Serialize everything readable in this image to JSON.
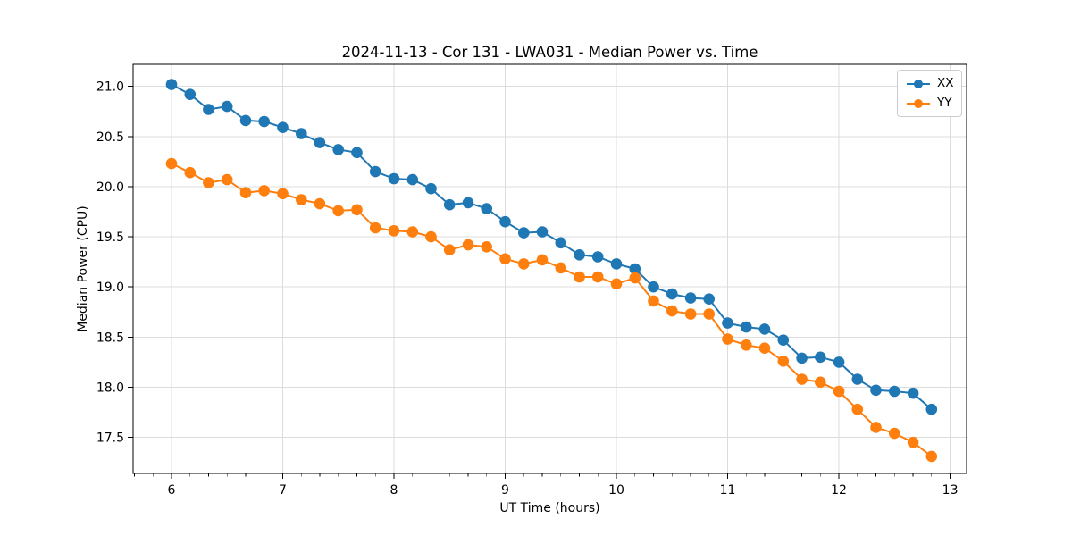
{
  "page": {
    "background": "#ffffff"
  },
  "chart_data": {
    "type": "line",
    "title": "2024-11-13 - Cor 131 - LWA031 - Median Power vs. Time",
    "xlabel": "UT Time (hours)",
    "ylabel": "Median Power (CPU)",
    "x": [
      6.0,
      6.167,
      6.333,
      6.5,
      6.667,
      6.833,
      7.0,
      7.167,
      7.333,
      7.5,
      7.667,
      7.833,
      8.0,
      8.167,
      8.333,
      8.5,
      8.667,
      8.833,
      9.0,
      9.167,
      9.333,
      9.5,
      9.667,
      9.833,
      10.0,
      10.167,
      10.333,
      10.5,
      10.667,
      10.833,
      11.0,
      11.167,
      11.333,
      11.5,
      11.667,
      11.833,
      12.0,
      12.167,
      12.333,
      12.5,
      12.667,
      12.833
    ],
    "series": [
      {
        "name": "XX",
        "color": "#1f77b4",
        "values": [
          21.02,
          20.92,
          20.77,
          20.8,
          20.66,
          20.65,
          20.59,
          20.53,
          20.44,
          20.37,
          20.34,
          20.15,
          20.08,
          20.07,
          19.98,
          19.82,
          19.84,
          19.78,
          19.65,
          19.54,
          19.55,
          19.44,
          19.32,
          19.3,
          19.23,
          19.18,
          19.0,
          18.93,
          18.89,
          18.88,
          18.64,
          18.6,
          18.58,
          18.47,
          18.29,
          18.3,
          18.25,
          18.08,
          17.97,
          17.96,
          17.94,
          17.78
        ]
      },
      {
        "name": "YY",
        "color": "#ff7f0e",
        "values": [
          20.23,
          20.14,
          20.04,
          20.07,
          19.94,
          19.96,
          19.93,
          19.87,
          19.83,
          19.76,
          19.77,
          19.59,
          19.56,
          19.55,
          19.5,
          19.37,
          19.42,
          19.4,
          19.28,
          19.23,
          19.27,
          19.19,
          19.1,
          19.1,
          19.03,
          19.09,
          18.86,
          18.76,
          18.73,
          18.73,
          18.48,
          18.42,
          18.39,
          18.26,
          18.08,
          18.05,
          17.96,
          17.78,
          17.6,
          17.54,
          17.45,
          17.31
        ]
      }
    ],
    "xlim": [
      5.655,
      13.148
    ],
    "ylim": [
      17.14,
      21.22
    ],
    "xticks": [
      6,
      7,
      8,
      9,
      10,
      11,
      12,
      13
    ],
    "xtick_labels": [
      "6",
      "7",
      "8",
      "9",
      "10",
      "11",
      "12",
      "13"
    ],
    "yticks": [
      17.5,
      18.0,
      18.5,
      19.0,
      19.5,
      20.0,
      20.5,
      21.0
    ],
    "ytick_labels": [
      "17.5",
      "18.0",
      "18.5",
      "19.0",
      "19.5",
      "20.0",
      "20.5",
      "21.0"
    ],
    "minor_xtick_interval": 0.16667,
    "grid": true,
    "grid_color": "#dcdcdc",
    "axes_color": "#000000",
    "background_color": "#ffffff",
    "marker": "circle",
    "legend": {
      "position": "top-right",
      "entries": [
        "XX",
        "YY"
      ]
    }
  }
}
